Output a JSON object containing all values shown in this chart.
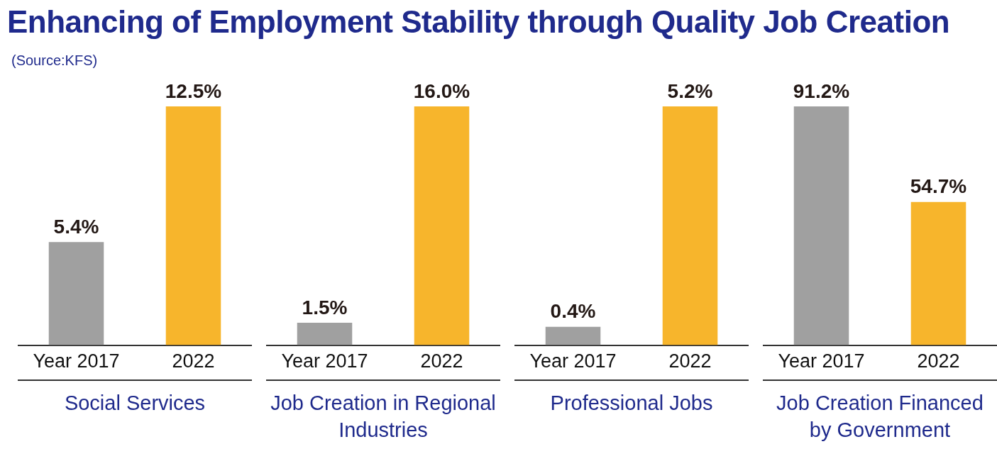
{
  "chart_data": [
    {
      "type": "bar",
      "title": "Enhancing of Employment Stability through Quality Job Creation",
      "annotations": [
        "(Source:KFS)"
      ],
      "xlabel": "Social Services",
      "categories": [
        "Year 2017",
        "2022"
      ],
      "values": [
        5.4,
        12.5
      ],
      "colors": [
        "#a0a0a0",
        "#f7b52c"
      ],
      "value_labels": [
        "5.4%",
        "12.5%"
      ]
    },
    {
      "type": "bar",
      "xlabel": "Job Creation in Regional Industries",
      "categories": [
        "Year 2017",
        "2022"
      ],
      "values": [
        1.5,
        16.0
      ],
      "colors": [
        "#a0a0a0",
        "#f7b52c"
      ],
      "value_labels": [
        "1.5%",
        "16.0%"
      ]
    },
    {
      "type": "bar",
      "xlabel": "Professional Jobs",
      "categories": [
        "Year 2017",
        "2022"
      ],
      "values": [
        0.4,
        5.2
      ],
      "colors": [
        "#a0a0a0",
        "#f7b52c"
      ],
      "value_labels": [
        "0.4%",
        "5.2%"
      ]
    },
    {
      "type": "bar",
      "xlabel": "Job Creation Financed by Government",
      "categories": [
        "Year 2017",
        "2022"
      ],
      "values": [
        91.2,
        54.7
      ],
      "colors": [
        "#a0a0a0",
        "#f7b52c"
      ],
      "value_labels": [
        "91.2%",
        "54.7%"
      ]
    }
  ]
}
